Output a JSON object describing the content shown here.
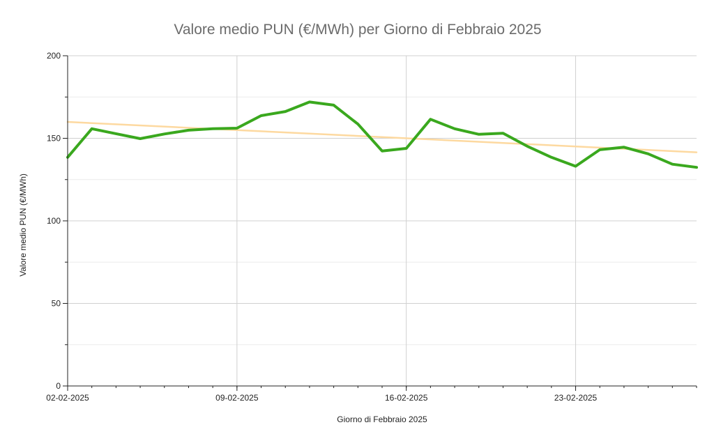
{
  "chart_data": {
    "type": "line",
    "title": "Valore medio PUN (€/MWh) per Giorno di Febbraio 2025",
    "xlabel": "Giorno di Febbraio 2025",
    "ylabel": "Valore medio PUN (€/MWh)",
    "ylim": [
      0,
      200
    ],
    "xlim": [
      "2025-02-02",
      "2025-02-28"
    ],
    "y_ticks": [
      0,
      50,
      100,
      150,
      200
    ],
    "y_tick_labels": [
      "0",
      "50",
      "100",
      "150",
      "200"
    ],
    "x_ticks": [
      "2025-02-02",
      "2025-02-09",
      "2025-02-16",
      "2025-02-23"
    ],
    "x_tick_labels": [
      "02-02-2025",
      "09-02-2025",
      "16-02-2025",
      "23-02-2025"
    ],
    "grid": true,
    "series": [
      {
        "color": "#3aa81e",
        "x": [
          "2025-02-02",
          "2025-02-03",
          "2025-02-04",
          "2025-02-05",
          "2025-02-06",
          "2025-02-07",
          "2025-02-08",
          "2025-02-09",
          "2025-02-10",
          "2025-02-11",
          "2025-02-12",
          "2025-02-13",
          "2025-02-14",
          "2025-02-15",
          "2025-02-16",
          "2025-02-17",
          "2025-02-18",
          "2025-02-19",
          "2025-02-20",
          "2025-02-21",
          "2025-02-22",
          "2025-02-23",
          "2025-02-24",
          "2025-02-25",
          "2025-02-26",
          "2025-02-27",
          "2025-02-28"
        ],
        "y": [
          138.5,
          155.8,
          152.8,
          149.8,
          152.6,
          154.9,
          155.8,
          156.1,
          163.7,
          166.2,
          172.0,
          170.1,
          158.6,
          142.3,
          143.9,
          161.5,
          155.8,
          152.4,
          153.1,
          145.2,
          138.5,
          133.1,
          143.1,
          144.6,
          140.6,
          134.3,
          132.4
        ]
      },
      {
        "color": "#fdd9a0",
        "x": [
          "2025-02-02",
          "2025-02-28"
        ],
        "y": [
          159.9,
          141.5
        ]
      }
    ]
  }
}
